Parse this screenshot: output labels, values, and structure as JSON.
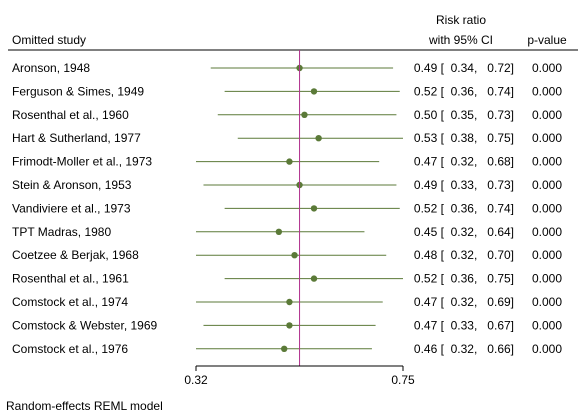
{
  "chart_data": {
    "type": "forest",
    "header": {
      "study_col": "Omitted study",
      "effect_col_line1": "Risk ratio",
      "effect_col_line2": "with 95% CI",
      "pvalue_col": "p-value"
    },
    "x_scale": "log",
    "xlim": [
      0.32,
      0.75
    ],
    "xticks": [
      "0.32",
      "0.75"
    ],
    "reference_line": 0.49,
    "footnote": "Random-effects REML model",
    "colors": {
      "marker": "#5b7a38",
      "ci_line": "#5b7a38",
      "reference_line": "#b0308c",
      "axis": "#000000"
    },
    "rows": [
      {
        "study": "Aronson, 1948",
        "rr": 0.49,
        "lo": 0.34,
        "hi": 0.72,
        "ci_text": "0.49 [  0.34,   0.72]",
        "p": "0.000"
      },
      {
        "study": "Ferguson & Simes, 1949",
        "rr": 0.52,
        "lo": 0.36,
        "hi": 0.74,
        "ci_text": "0.52 [  0.36,   0.74]",
        "p": "0.000"
      },
      {
        "study": "Rosenthal et al., 1960",
        "rr": 0.5,
        "lo": 0.35,
        "hi": 0.73,
        "ci_text": "0.50 [  0.35,   0.73]",
        "p": "0.000"
      },
      {
        "study": "Hart & Sutherland, 1977",
        "rr": 0.53,
        "lo": 0.38,
        "hi": 0.75,
        "ci_text": "0.53 [  0.38,   0.75]",
        "p": "0.000"
      },
      {
        "study": "Frimodt-Moller et al., 1973",
        "rr": 0.47,
        "lo": 0.32,
        "hi": 0.68,
        "ci_text": "0.47 [  0.32,   0.68]",
        "p": "0.000"
      },
      {
        "study": "Stein & Aronson, 1953",
        "rr": 0.49,
        "lo": 0.33,
        "hi": 0.73,
        "ci_text": "0.49 [  0.33,   0.73]",
        "p": "0.000"
      },
      {
        "study": "Vandiviere et al., 1973",
        "rr": 0.52,
        "lo": 0.36,
        "hi": 0.74,
        "ci_text": "0.52 [  0.36,   0.74]",
        "p": "0.000"
      },
      {
        "study": "TPT Madras, 1980",
        "rr": 0.45,
        "lo": 0.32,
        "hi": 0.64,
        "ci_text": "0.45 [  0.32,   0.64]",
        "p": "0.000"
      },
      {
        "study": "Coetzee & Berjak, 1968",
        "rr": 0.48,
        "lo": 0.32,
        "hi": 0.7,
        "ci_text": "0.48 [  0.32,   0.70]",
        "p": "0.000"
      },
      {
        "study": "Rosenthal et al., 1961",
        "rr": 0.52,
        "lo": 0.36,
        "hi": 0.75,
        "ci_text": "0.52 [  0.36,   0.75]",
        "p": "0.000"
      },
      {
        "study": "Comstock et al., 1974",
        "rr": 0.47,
        "lo": 0.32,
        "hi": 0.69,
        "ci_text": "0.47 [  0.32,   0.69]",
        "p": "0.000"
      },
      {
        "study": "Comstock & Webster, 1969",
        "rr": 0.47,
        "lo": 0.33,
        "hi": 0.67,
        "ci_text": "0.47 [  0.33,   0.67]",
        "p": "0.000"
      },
      {
        "study": "Comstock et al., 1976",
        "rr": 0.46,
        "lo": 0.32,
        "hi": 0.66,
        "ci_text": "0.46 [  0.32,   0.66]",
        "p": "0.000"
      }
    ]
  }
}
